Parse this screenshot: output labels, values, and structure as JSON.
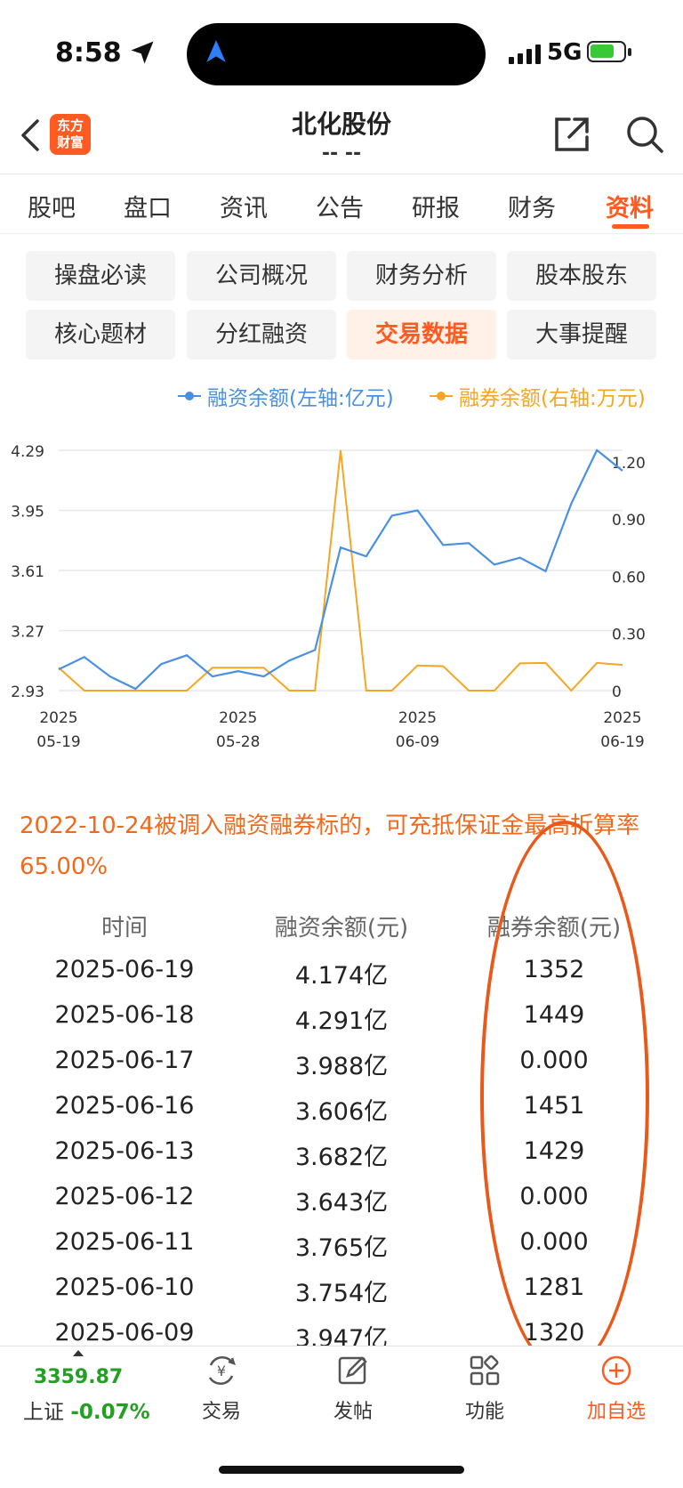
{
  "status_bar": {
    "time": "8:58",
    "network": "5G"
  },
  "header": {
    "logo_line1": "东方",
    "logo_line2": "财富",
    "title": "北化股份",
    "subtitle": "-- --"
  },
  "tabs": [
    {
      "label": "股吧"
    },
    {
      "label": "盘口"
    },
    {
      "label": "资讯"
    },
    {
      "label": "公告"
    },
    {
      "label": "研报"
    },
    {
      "label": "财务"
    },
    {
      "label": "资料",
      "active": true
    }
  ],
  "subnav": [
    {
      "label": "操盘必读"
    },
    {
      "label": "公司概况"
    },
    {
      "label": "财务分析"
    },
    {
      "label": "股本股东"
    },
    {
      "label": "核心题材"
    },
    {
      "label": "分红融资"
    },
    {
      "label": "交易数据",
      "active": true
    },
    {
      "label": "大事提醒"
    }
  ],
  "colors": {
    "accent": "#ff5a1f",
    "series_financing": "#4a90e2",
    "series_lending": "#f5a623",
    "positive": "#22a022",
    "annotation": "#e8591a"
  },
  "chart_data": {
    "type": "line",
    "legend_position": "top-right",
    "grid": true,
    "x_tick_labels": [
      [
        "2025",
        "05-19"
      ],
      [
        "2025",
        "05-28"
      ],
      [
        "2025",
        "06-09"
      ],
      [
        "2025",
        "06-19"
      ]
    ],
    "x": [
      "05-19",
      "05-20",
      "05-21",
      "05-22",
      "05-23",
      "05-26",
      "05-27",
      "05-28",
      "05-29",
      "05-30",
      "06-03",
      "06-04",
      "06-05",
      "06-06",
      "06-09",
      "06-10",
      "06-11",
      "06-12",
      "06-13",
      "06-16",
      "06-17",
      "06-18",
      "06-19"
    ],
    "y_left": {
      "ticks": [
        "4.29",
        "3.95",
        "3.61",
        "3.27",
        "2.93"
      ],
      "range": [
        2.93,
        4.29
      ]
    },
    "y_right": {
      "ticks": [
        "1.20",
        "0.90",
        "0.60",
        "0.30",
        "0"
      ],
      "range": [
        0,
        1.26
      ]
    },
    "series": [
      {
        "name": "融资余额(左轴:亿元)",
        "axis": "left",
        "values": [
          3.05,
          3.12,
          3.01,
          2.94,
          3.08,
          3.13,
          3.01,
          3.04,
          3.01,
          3.1,
          3.16,
          3.74,
          3.69,
          3.92,
          3.95,
          3.754,
          3.765,
          3.643,
          3.682,
          3.606,
          3.988,
          4.291,
          4.174
        ]
      },
      {
        "name": "融券余额(右轴:万元)",
        "axis": "right",
        "values": [
          0.12,
          0,
          0,
          0,
          0,
          0,
          0.12,
          0.12,
          0.12,
          0,
          0,
          1.26,
          0,
          0,
          0.132,
          0.128,
          0,
          0,
          0.143,
          0.145,
          0,
          0.145,
          0.135
        ]
      }
    ]
  },
  "note": "2022-10-24被调入融资融券标的，可充抵保证金最高折算率65.00%",
  "table": {
    "headers": [
      "时间",
      "融资余额(元)",
      "融券余额(元)"
    ],
    "rows": [
      [
        "2025-06-19",
        "4.174亿",
        "1352"
      ],
      [
        "2025-06-18",
        "4.291亿",
        "1449"
      ],
      [
        "2025-06-17",
        "3.988亿",
        "0.000"
      ],
      [
        "2025-06-16",
        "3.606亿",
        "1451"
      ],
      [
        "2025-06-13",
        "3.682亿",
        "1429"
      ],
      [
        "2025-06-12",
        "3.643亿",
        "0.000"
      ],
      [
        "2025-06-11",
        "3.765亿",
        "0.000"
      ],
      [
        "2025-06-10",
        "3.754亿",
        "1281"
      ],
      [
        "2025-06-09",
        "3.947亿",
        "1320"
      ]
    ]
  },
  "bottom_nav": {
    "index_value": "3359.87",
    "index_name": "上证",
    "index_change": "-0.07%",
    "items": [
      {
        "label": "交易",
        "icon": "trade-icon"
      },
      {
        "label": "发帖",
        "icon": "post-icon"
      },
      {
        "label": "功能",
        "icon": "grid-icon"
      },
      {
        "label": "加自选",
        "icon": "add-circle-icon"
      }
    ]
  }
}
